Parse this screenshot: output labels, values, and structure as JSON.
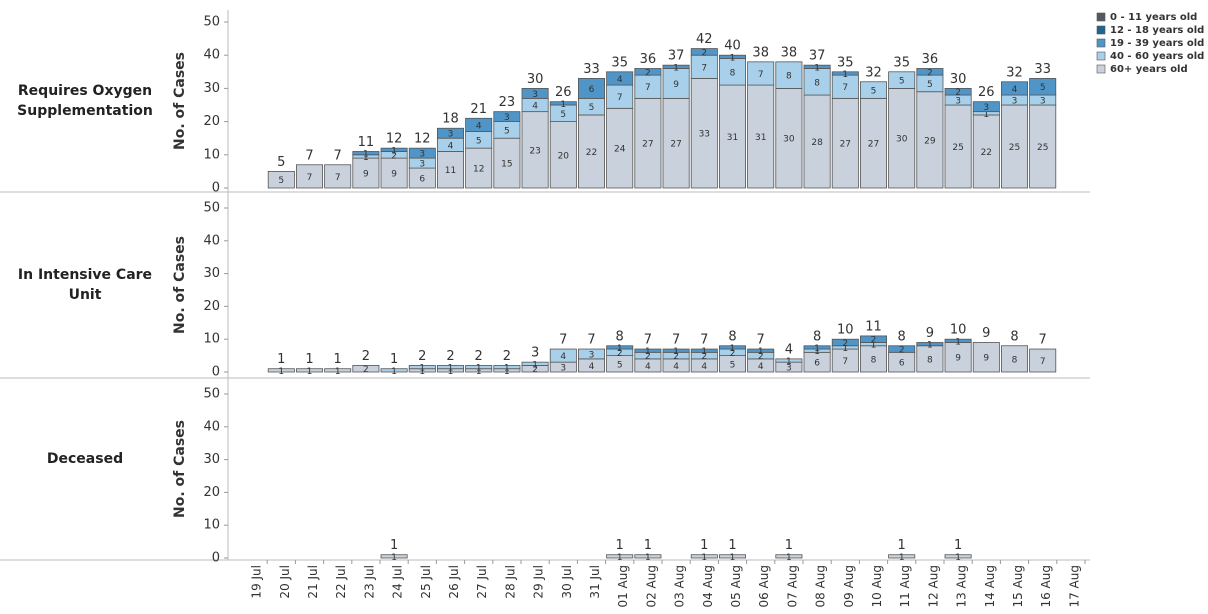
{
  "chart_data": [
    {
      "type": "bar",
      "stacked": true,
      "title": "Requires Oxygen Supplementation",
      "y_label": "No. of Cases",
      "categories": [
        "19 Jul",
        "20 Jul",
        "21 Jul",
        "22 Jul",
        "23 Jul",
        "24 Jul",
        "25 Jul",
        "26 Jul",
        "27 Jul",
        "28 Jul",
        "29 Jul",
        "30 Jul",
        "31 Jul",
        "01 Aug",
        "02 Aug",
        "03 Aug",
        "04 Aug",
        "05 Aug",
        "06 Aug",
        "07 Aug",
        "08 Aug",
        "09 Aug",
        "10 Aug",
        "11 Aug",
        "12 Aug",
        "13 Aug",
        "14 Aug",
        "15 Aug",
        "16 Aug",
        "17 Aug"
      ],
      "ylim": [
        0,
        50
      ],
      "yticks": [
        0,
        10,
        20,
        30,
        40,
        50
      ],
      "series": [
        {
          "name": "0 - 11 years old",
          "color": "#55595f",
          "values": [
            null,
            null,
            null,
            null,
            null,
            null,
            null,
            null,
            null,
            null,
            null,
            null,
            null,
            null,
            null,
            null,
            null,
            null,
            null,
            null,
            null,
            null,
            null,
            null,
            null,
            null,
            null,
            null,
            null,
            null
          ]
        },
        {
          "name": "12 - 18 years old",
          "color": "#1f6591",
          "values": [
            null,
            null,
            null,
            null,
            null,
            null,
            null,
            null,
            null,
            null,
            null,
            null,
            null,
            null,
            null,
            null,
            null,
            null,
            null,
            null,
            null,
            null,
            null,
            null,
            null,
            null,
            null,
            null,
            null,
            null
          ]
        },
        {
          "name": "19 - 39 years old",
          "color": "#4f95c8",
          "values": [
            null,
            null,
            null,
            null,
            1,
            1,
            3,
            3,
            4,
            3,
            3,
            1,
            6,
            4,
            2,
            1,
            2,
            1,
            null,
            null,
            1,
            1,
            null,
            null,
            2,
            2,
            3,
            4,
            5,
            null
          ]
        },
        {
          "name": "40 - 60 years old",
          "color": "#a9d0ea",
          "values": [
            null,
            null,
            null,
            null,
            1,
            2,
            3,
            4,
            5,
            5,
            4,
            5,
            5,
            7,
            7,
            9,
            7,
            8,
            7,
            8,
            8,
            7,
            5,
            5,
            5,
            3,
            1,
            3,
            3,
            null
          ]
        },
        {
          "name": "60+ years old",
          "color": "#c9d1dc",
          "values": [
            null,
            5,
            7,
            7,
            9,
            9,
            6,
            11,
            12,
            15,
            23,
            20,
            22,
            24,
            27,
            27,
            33,
            31,
            31,
            30,
            28,
            27,
            27,
            30,
            29,
            25,
            22,
            25,
            25,
            null
          ]
        }
      ],
      "totals": [
        null,
        5,
        7,
        7,
        11,
        12,
        12,
        18,
        21,
        23,
        30,
        26,
        33,
        35,
        36,
        37,
        42,
        40,
        38,
        38,
        37,
        35,
        32,
        35,
        36,
        30,
        26,
        32,
        33,
        null
      ]
    },
    {
      "type": "bar",
      "stacked": true,
      "title": "In Intensive Care Unit",
      "y_label": "No. of Cases",
      "categories": [
        "19 Jul",
        "20 Jul",
        "21 Jul",
        "22 Jul",
        "23 Jul",
        "24 Jul",
        "25 Jul",
        "26 Jul",
        "27 Jul",
        "28 Jul",
        "29 Jul",
        "30 Jul",
        "31 Jul",
        "01 Aug",
        "02 Aug",
        "03 Aug",
        "04 Aug",
        "05 Aug",
        "06 Aug",
        "07 Aug",
        "08 Aug",
        "09 Aug",
        "10 Aug",
        "11 Aug",
        "12 Aug",
        "13 Aug",
        "14 Aug",
        "15 Aug",
        "16 Aug",
        "17 Aug"
      ],
      "ylim": [
        0,
        50
      ],
      "yticks": [
        0,
        10,
        20,
        30,
        40,
        50
      ],
      "series": [
        {
          "name": "0 - 11 years old",
          "color": "#55595f",
          "values": [
            null,
            null,
            null,
            null,
            null,
            null,
            null,
            null,
            null,
            null,
            null,
            null,
            null,
            null,
            null,
            null,
            null,
            null,
            null,
            null,
            null,
            null,
            null,
            null,
            null,
            null,
            null,
            null,
            null,
            null
          ]
        },
        {
          "name": "12 - 18 years old",
          "color": "#1f6591",
          "values": [
            null,
            null,
            null,
            null,
            null,
            null,
            null,
            null,
            null,
            null,
            null,
            null,
            null,
            null,
            null,
            null,
            null,
            null,
            null,
            null,
            null,
            null,
            null,
            null,
            null,
            null,
            null,
            null,
            null,
            null
          ]
        },
        {
          "name": "19 - 39 years old",
          "color": "#4f95c8",
          "values": [
            null,
            null,
            null,
            null,
            null,
            null,
            null,
            null,
            null,
            null,
            null,
            null,
            null,
            1,
            1,
            1,
            1,
            1,
            1,
            null,
            1,
            2,
            2,
            2,
            1,
            1,
            null,
            null,
            null,
            null
          ]
        },
        {
          "name": "40 - 60 years old",
          "color": "#a9d0ea",
          "values": [
            null,
            null,
            null,
            null,
            null,
            1,
            1,
            1,
            1,
            1,
            1,
            4,
            3,
            2,
            2,
            2,
            2,
            2,
            2,
            1,
            1,
            1,
            1,
            null,
            null,
            null,
            null,
            null,
            null,
            null
          ]
        },
        {
          "name": "60+ years old",
          "color": "#c9d1dc",
          "values": [
            null,
            1,
            1,
            1,
            2,
            null,
            1,
            1,
            1,
            1,
            2,
            3,
            4,
            5,
            4,
            4,
            4,
            5,
            4,
            3,
            6,
            7,
            8,
            6,
            8,
            9,
            9,
            8,
            7,
            null
          ]
        }
      ],
      "totals": [
        null,
        1,
        1,
        1,
        2,
        1,
        2,
        2,
        2,
        2,
        3,
        7,
        7,
        8,
        7,
        7,
        7,
        8,
        7,
        4,
        8,
        10,
        11,
        8,
        9,
        10,
        9,
        8,
        7,
        null
      ]
    },
    {
      "type": "bar",
      "stacked": true,
      "title": "Deceased",
      "y_label": "No. of Cases",
      "categories": [
        "19 Jul",
        "20 Jul",
        "21 Jul",
        "22 Jul",
        "23 Jul",
        "24 Jul",
        "25 Jul",
        "26 Jul",
        "27 Jul",
        "28 Jul",
        "29 Jul",
        "30 Jul",
        "31 Jul",
        "01 Aug",
        "02 Aug",
        "03 Aug",
        "04 Aug",
        "05 Aug",
        "06 Aug",
        "07 Aug",
        "08 Aug",
        "09 Aug",
        "10 Aug",
        "11 Aug",
        "12 Aug",
        "13 Aug",
        "14 Aug",
        "15 Aug",
        "16 Aug",
        "17 Aug"
      ],
      "ylim": [
        0,
        50
      ],
      "yticks": [
        0,
        10,
        20,
        30,
        40,
        50
      ],
      "series": [
        {
          "name": "0 - 11 years old",
          "color": "#55595f",
          "values": [
            null,
            null,
            null,
            null,
            null,
            null,
            null,
            null,
            null,
            null,
            null,
            null,
            null,
            null,
            null,
            null,
            null,
            null,
            null,
            null,
            null,
            null,
            null,
            null,
            null,
            null,
            null,
            null,
            null,
            null
          ]
        },
        {
          "name": "12 - 18 years old",
          "color": "#1f6591",
          "values": [
            null,
            null,
            null,
            null,
            null,
            null,
            null,
            null,
            null,
            null,
            null,
            null,
            null,
            null,
            null,
            null,
            null,
            null,
            null,
            null,
            null,
            null,
            null,
            null,
            null,
            null,
            null,
            null,
            null,
            null
          ]
        },
        {
          "name": "19 - 39 years old",
          "color": "#4f95c8",
          "values": [
            null,
            null,
            null,
            null,
            null,
            null,
            null,
            null,
            null,
            null,
            null,
            null,
            null,
            null,
            null,
            null,
            null,
            null,
            null,
            null,
            null,
            null,
            null,
            null,
            null,
            null,
            null,
            null,
            null,
            null
          ]
        },
        {
          "name": "40 - 60 years old",
          "color": "#a9d0ea",
          "values": [
            null,
            null,
            null,
            null,
            null,
            null,
            null,
            null,
            null,
            null,
            null,
            null,
            null,
            null,
            null,
            null,
            null,
            null,
            null,
            null,
            null,
            null,
            null,
            null,
            null,
            null,
            null,
            null,
            null,
            null
          ]
        },
        {
          "name": "60+ years old",
          "color": "#c9d1dc",
          "values": [
            null,
            null,
            null,
            null,
            null,
            1,
            null,
            null,
            null,
            null,
            null,
            null,
            null,
            1,
            1,
            null,
            1,
            1,
            null,
            1,
            null,
            null,
            null,
            1,
            null,
            1,
            null,
            null,
            null,
            null
          ]
        }
      ],
      "totals": [
        null,
        null,
        null,
        null,
        null,
        1,
        null,
        null,
        null,
        null,
        null,
        null,
        null,
        1,
        1,
        null,
        1,
        1,
        null,
        1,
        null,
        null,
        null,
        1,
        null,
        1,
        null,
        null,
        null,
        null
      ]
    }
  ]
}
